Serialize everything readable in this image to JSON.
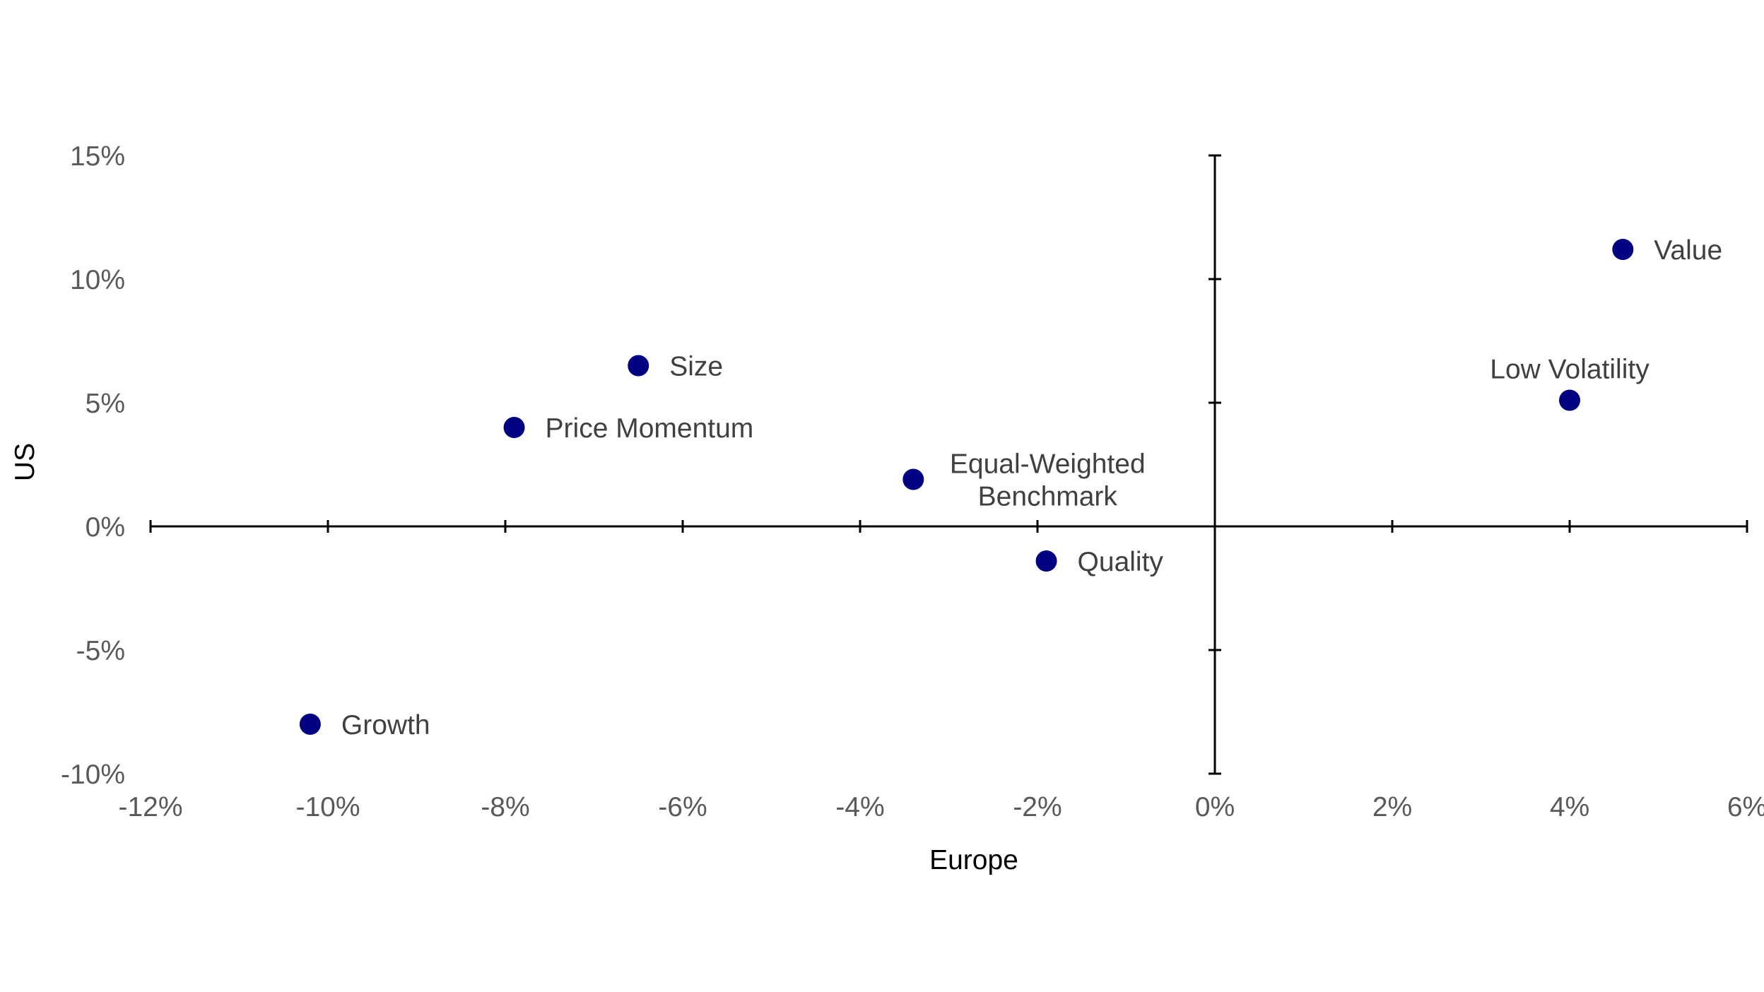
{
  "chart_data": {
    "type": "scatter",
    "xlabel": "Europe",
    "ylabel": "US",
    "xlim": [
      -12,
      6
    ],
    "ylim": [
      -10,
      15
    ],
    "x_ticks": [
      -12,
      -10,
      -8,
      -6,
      -4,
      -2,
      0,
      2,
      4,
      6
    ],
    "y_ticks": [
      -10,
      -5,
      0,
      5,
      10,
      15
    ],
    "x_tick_labels": [
      "-12%",
      "-10%",
      "-8%",
      "-6%",
      "-4%",
      "-2%",
      "0%",
      "2%",
      "4%",
      "6%"
    ],
    "y_tick_labels": [
      "-10%",
      "-5%",
      "0%",
      "5%",
      "10%",
      "15%"
    ],
    "grid": false,
    "legend": "none",
    "marker_color": "#000080",
    "axis_color": "#000000",
    "points": [
      {
        "name": "Value",
        "label_lines": [
          "Value"
        ],
        "x": 4.6,
        "y": 11.2,
        "label_pos": "right"
      },
      {
        "name": "Low Volatility",
        "label_lines": [
          "Low Volatility"
        ],
        "x": 4.0,
        "y": 5.1,
        "label_pos": "above"
      },
      {
        "name": "Size",
        "label_lines": [
          "Size"
        ],
        "x": -6.5,
        "y": 6.5,
        "label_pos": "right"
      },
      {
        "name": "Price Momentum",
        "label_lines": [
          "Price Momentum"
        ],
        "x": -7.9,
        "y": 4.0,
        "label_pos": "right"
      },
      {
        "name": "Equal-Weighted Benchmark",
        "label_lines": [
          "Equal-Weighted",
          "Benchmark"
        ],
        "x": -3.4,
        "y": 1.9,
        "label_pos": "right"
      },
      {
        "name": "Quality",
        "label_lines": [
          "Quality"
        ],
        "x": -1.9,
        "y": -1.4,
        "label_pos": "right"
      },
      {
        "name": "Growth",
        "label_lines": [
          "Growth"
        ],
        "x": -10.2,
        "y": -8.0,
        "label_pos": "right"
      }
    ]
  }
}
